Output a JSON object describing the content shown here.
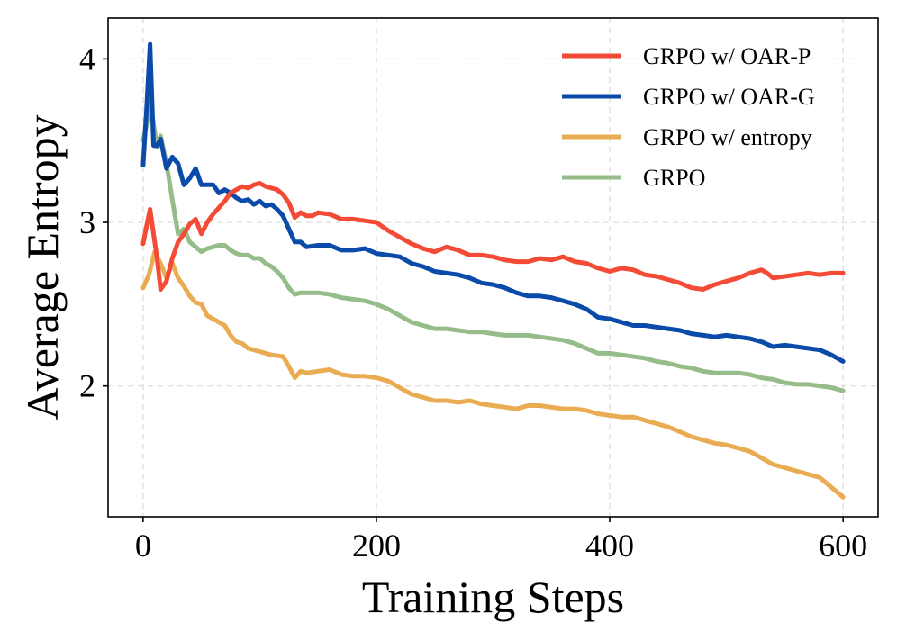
{
  "chart_data": {
    "type": "line",
    "xlabel": "Training Steps",
    "ylabel": "Average Entropy",
    "xlim": [
      -30,
      630
    ],
    "ylim": [
      1.2,
      4.25
    ],
    "xticks": [
      0,
      200,
      400,
      600
    ],
    "yticks": [
      2,
      3,
      4
    ],
    "grid": true,
    "legend_position": "top-right",
    "series": [
      {
        "name": "GRPO w/ OAR-P",
        "color": "#f44b36",
        "x": [
          0,
          3,
          6,
          9,
          12,
          15,
          20,
          25,
          30,
          35,
          40,
          45,
          50,
          55,
          60,
          65,
          70,
          75,
          80,
          85,
          90,
          95,
          100,
          105,
          110,
          115,
          120,
          125,
          130,
          135,
          140,
          145,
          150,
          160,
          170,
          180,
          190,
          200,
          210,
          220,
          230,
          240,
          250,
          260,
          270,
          280,
          290,
          300,
          310,
          320,
          330,
          340,
          350,
          360,
          370,
          380,
          390,
          400,
          410,
          420,
          430,
          440,
          450,
          460,
          470,
          480,
          490,
          500,
          510,
          520,
          530,
          535,
          540,
          550,
          560,
          570,
          580,
          590,
          600
        ],
        "y": [
          2.87,
          2.98,
          3.08,
          2.93,
          2.78,
          2.59,
          2.64,
          2.78,
          2.88,
          2.93,
          2.99,
          3.02,
          2.93,
          3.0,
          3.05,
          3.09,
          3.13,
          3.18,
          3.2,
          3.22,
          3.21,
          3.23,
          3.24,
          3.22,
          3.21,
          3.2,
          3.17,
          3.12,
          3.03,
          3.06,
          3.04,
          3.04,
          3.06,
          3.05,
          3.02,
          3.02,
          3.01,
          3.0,
          2.95,
          2.91,
          2.87,
          2.84,
          2.82,
          2.85,
          2.83,
          2.8,
          2.8,
          2.79,
          2.77,
          2.76,
          2.76,
          2.78,
          2.77,
          2.79,
          2.76,
          2.75,
          2.72,
          2.7,
          2.72,
          2.71,
          2.68,
          2.67,
          2.65,
          2.63,
          2.6,
          2.59,
          2.62,
          2.64,
          2.66,
          2.69,
          2.71,
          2.69,
          2.66,
          2.67,
          2.68,
          2.69,
          2.68,
          2.69,
          2.69
        ]
      },
      {
        "name": "GRPO w/ OAR-G",
        "color": "#0a4aa8",
        "x": [
          0,
          3,
          6,
          9,
          12,
          15,
          20,
          25,
          30,
          35,
          40,
          45,
          50,
          55,
          60,
          65,
          70,
          75,
          80,
          85,
          90,
          95,
          100,
          105,
          110,
          115,
          120,
          125,
          130,
          135,
          140,
          150,
          160,
          170,
          180,
          190,
          200,
          210,
          220,
          230,
          240,
          250,
          260,
          270,
          280,
          290,
          300,
          310,
          320,
          330,
          340,
          350,
          360,
          370,
          380,
          390,
          400,
          410,
          420,
          430,
          440,
          450,
          460,
          470,
          480,
          490,
          500,
          510,
          520,
          530,
          540,
          550,
          560,
          570,
          580,
          590,
          600
        ],
        "y": [
          3.35,
          3.7,
          4.09,
          3.47,
          3.47,
          3.51,
          3.33,
          3.4,
          3.36,
          3.23,
          3.27,
          3.33,
          3.23,
          3.23,
          3.23,
          3.18,
          3.2,
          3.18,
          3.15,
          3.13,
          3.14,
          3.11,
          3.13,
          3.1,
          3.11,
          3.08,
          3.04,
          2.96,
          2.88,
          2.88,
          2.85,
          2.86,
          2.86,
          2.83,
          2.83,
          2.84,
          2.81,
          2.8,
          2.79,
          2.75,
          2.73,
          2.7,
          2.69,
          2.68,
          2.66,
          2.63,
          2.62,
          2.6,
          2.57,
          2.55,
          2.55,
          2.54,
          2.52,
          2.5,
          2.47,
          2.42,
          2.41,
          2.39,
          2.37,
          2.37,
          2.36,
          2.35,
          2.34,
          2.32,
          2.31,
          2.3,
          2.31,
          2.3,
          2.29,
          2.27,
          2.24,
          2.25,
          2.24,
          2.23,
          2.22,
          2.19,
          2.15
        ]
      },
      {
        "name": "GRPO w/ entropy",
        "color": "#eaac53",
        "x": [
          0,
          5,
          10,
          15,
          20,
          25,
          30,
          35,
          40,
          45,
          50,
          55,
          60,
          65,
          70,
          75,
          80,
          85,
          90,
          95,
          100,
          110,
          120,
          125,
          130,
          135,
          140,
          150,
          160,
          170,
          180,
          190,
          200,
          210,
          220,
          230,
          240,
          250,
          260,
          270,
          280,
          290,
          300,
          310,
          320,
          330,
          340,
          350,
          360,
          370,
          380,
          390,
          400,
          410,
          420,
          430,
          440,
          450,
          460,
          470,
          480,
          490,
          500,
          510,
          520,
          530,
          540,
          550,
          560,
          570,
          580,
          590,
          600
        ],
        "y": [
          2.6,
          2.68,
          2.82,
          2.75,
          2.66,
          2.75,
          2.66,
          2.61,
          2.55,
          2.51,
          2.5,
          2.43,
          2.41,
          2.39,
          2.37,
          2.31,
          2.27,
          2.26,
          2.23,
          2.22,
          2.21,
          2.19,
          2.18,
          2.12,
          2.05,
          2.09,
          2.08,
          2.09,
          2.1,
          2.07,
          2.06,
          2.06,
          2.05,
          2.03,
          1.99,
          1.95,
          1.93,
          1.91,
          1.91,
          1.9,
          1.91,
          1.89,
          1.88,
          1.87,
          1.86,
          1.88,
          1.88,
          1.87,
          1.86,
          1.86,
          1.85,
          1.83,
          1.82,
          1.81,
          1.81,
          1.79,
          1.77,
          1.75,
          1.72,
          1.69,
          1.67,
          1.65,
          1.64,
          1.62,
          1.6,
          1.56,
          1.52,
          1.5,
          1.48,
          1.46,
          1.44,
          1.38,
          1.32
        ]
      },
      {
        "name": "GRPO",
        "color": "#96bc8a",
        "x": [
          0,
          3,
          6,
          9,
          12,
          15,
          20,
          25,
          30,
          35,
          40,
          45,
          50,
          55,
          60,
          65,
          70,
          75,
          80,
          85,
          90,
          95,
          100,
          105,
          110,
          115,
          120,
          125,
          130,
          135,
          140,
          150,
          160,
          170,
          180,
          190,
          200,
          210,
          220,
          230,
          240,
          250,
          260,
          270,
          280,
          290,
          300,
          310,
          320,
          330,
          340,
          350,
          360,
          370,
          380,
          390,
          400,
          410,
          420,
          430,
          440,
          450,
          460,
          470,
          480,
          490,
          500,
          510,
          520,
          530,
          540,
          550,
          560,
          570,
          580,
          590,
          600
        ],
        "y": [
          3.5,
          3.6,
          3.74,
          3.6,
          3.46,
          3.53,
          3.36,
          3.14,
          2.93,
          2.96,
          2.88,
          2.85,
          2.82,
          2.84,
          2.85,
          2.86,
          2.86,
          2.83,
          2.81,
          2.8,
          2.8,
          2.78,
          2.78,
          2.75,
          2.73,
          2.7,
          2.66,
          2.6,
          2.56,
          2.57,
          2.57,
          2.57,
          2.56,
          2.54,
          2.53,
          2.52,
          2.5,
          2.47,
          2.43,
          2.39,
          2.37,
          2.35,
          2.35,
          2.34,
          2.33,
          2.33,
          2.32,
          2.31,
          2.31,
          2.31,
          2.3,
          2.29,
          2.28,
          2.26,
          2.23,
          2.2,
          2.2,
          2.19,
          2.18,
          2.17,
          2.15,
          2.14,
          2.12,
          2.11,
          2.09,
          2.08,
          2.08,
          2.08,
          2.07,
          2.05,
          2.04,
          2.02,
          2.01,
          2.01,
          2.0,
          1.99,
          1.97
        ]
      }
    ]
  }
}
